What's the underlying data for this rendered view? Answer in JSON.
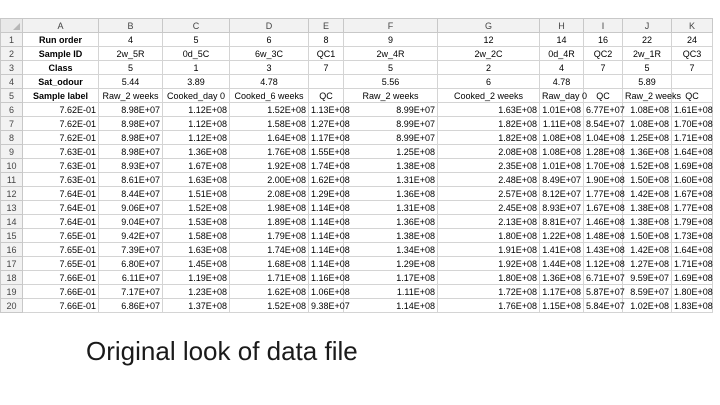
{
  "caption": "Original look of data file",
  "columns": [
    "A",
    "B",
    "C",
    "D",
    "E",
    "F",
    "G",
    "H",
    "I",
    "J",
    "K"
  ],
  "rows": [
    {
      "n": "1",
      "cells": [
        "Run order",
        "4",
        "5",
        "6",
        "8",
        "9",
        "12",
        "14",
        "16",
        "22",
        "24"
      ]
    },
    {
      "n": "2",
      "cells": [
        "Sample ID",
        "2w_5R",
        "0d_5C",
        "6w_3C",
        "QC1",
        "2w_4R",
        "2w_2C",
        "0d_4R",
        "QC2",
        "2w_1R",
        "QC3"
      ]
    },
    {
      "n": "3",
      "cells": [
        "Class",
        "5",
        "1",
        "3",
        "7",
        "5",
        "2",
        "4",
        "7",
        "5",
        "7"
      ]
    },
    {
      "n": "4",
      "cells": [
        "Sat_odour",
        "5.44",
        "3.89",
        "4.78",
        "",
        "5.56",
        "6",
        "4.78",
        "",
        "5.89",
        ""
      ]
    },
    {
      "n": "5",
      "cells": [
        "Sample label",
        "Raw_2 weeks",
        "Cooked_day 0",
        "Cooked_6 weeks",
        "QC",
        "Raw_2 weeks",
        "Cooked_2 weeks",
        "Raw_day 0",
        "QC",
        "Raw_2 weeks",
        "QC"
      ]
    },
    {
      "n": "6",
      "cells": [
        "7.62E-01",
        "8.98E+07",
        "1.12E+08",
        "1.52E+08",
        "1.13E+08",
        "8.99E+07",
        "1.63E+08",
        "1.01E+08",
        "6.77E+07",
        "1.08E+08",
        "1.61E+08"
      ]
    },
    {
      "n": "7",
      "cells": [
        "7.62E-01",
        "8.98E+07",
        "1.12E+08",
        "1.58E+08",
        "1.27E+08",
        "8.99E+07",
        "1.82E+08",
        "1.11E+08",
        "8.54E+07",
        "1.08E+08",
        "1.70E+08"
      ]
    },
    {
      "n": "8",
      "cells": [
        "7.62E-01",
        "8.98E+07",
        "1.12E+08",
        "1.64E+08",
        "1.17E+08",
        "8.99E+07",
        "1.82E+08",
        "1.08E+08",
        "1.04E+08",
        "1.25E+08",
        "1.71E+08"
      ]
    },
    {
      "n": "9",
      "cells": [
        "7.63E-01",
        "8.98E+07",
        "1.36E+08",
        "1.76E+08",
        "1.55E+08",
        "1.25E+08",
        "2.08E+08",
        "1.08E+08",
        "1.28E+08",
        "1.36E+08",
        "1.64E+08"
      ]
    },
    {
      "n": "10",
      "cells": [
        "7.63E-01",
        "8.93E+07",
        "1.67E+08",
        "1.92E+08",
        "1.74E+08",
        "1.38E+08",
        "2.35E+08",
        "1.01E+08",
        "1.70E+08",
        "1.52E+08",
        "1.69E+08"
      ]
    },
    {
      "n": "11",
      "cells": [
        "7.63E-01",
        "8.61E+07",
        "1.63E+08",
        "2.00E+08",
        "1.62E+08",
        "1.31E+08",
        "2.48E+08",
        "8.49E+07",
        "1.90E+08",
        "1.50E+08",
        "1.60E+08"
      ]
    },
    {
      "n": "12",
      "cells": [
        "7.64E-01",
        "8.44E+07",
        "1.51E+08",
        "2.08E+08",
        "1.29E+08",
        "1.36E+08",
        "2.57E+08",
        "8.12E+07",
        "1.77E+08",
        "1.42E+08",
        "1.67E+08"
      ]
    },
    {
      "n": "13",
      "cells": [
        "7.64E-01",
        "9.06E+07",
        "1.52E+08",
        "1.98E+08",
        "1.14E+08",
        "1.31E+08",
        "2.45E+08",
        "8.93E+07",
        "1.67E+08",
        "1.38E+08",
        "1.77E+08"
      ]
    },
    {
      "n": "14",
      "cells": [
        "7.64E-01",
        "9.04E+07",
        "1.53E+08",
        "1.89E+08",
        "1.14E+08",
        "1.36E+08",
        "2.13E+08",
        "8.81E+07",
        "1.46E+08",
        "1.38E+08",
        "1.79E+08"
      ]
    },
    {
      "n": "15",
      "cells": [
        "7.65E-01",
        "9.42E+07",
        "1.58E+08",
        "1.79E+08",
        "1.14E+08",
        "1.38E+08",
        "1.80E+08",
        "1.22E+08",
        "1.48E+08",
        "1.50E+08",
        "1.73E+08"
      ]
    },
    {
      "n": "16",
      "cells": [
        "7.65E-01",
        "7.39E+07",
        "1.63E+08",
        "1.74E+08",
        "1.14E+08",
        "1.34E+08",
        "1.91E+08",
        "1.41E+08",
        "1.43E+08",
        "1.42E+08",
        "1.64E+08"
      ]
    },
    {
      "n": "17",
      "cells": [
        "7.65E-01",
        "6.80E+07",
        "1.45E+08",
        "1.68E+08",
        "1.14E+08",
        "1.29E+08",
        "1.92E+08",
        "1.44E+08",
        "1.12E+08",
        "1.27E+08",
        "1.71E+08"
      ]
    },
    {
      "n": "18",
      "cells": [
        "7.66E-01",
        "6.11E+07",
        "1.19E+08",
        "1.71E+08",
        "1.16E+08",
        "1.17E+08",
        "1.80E+08",
        "1.36E+08",
        "6.71E+07",
        "9.59E+07",
        "1.69E+08"
      ]
    },
    {
      "n": "19",
      "cells": [
        "7.66E-01",
        "7.17E+07",
        "1.23E+08",
        "1.62E+08",
        "1.06E+08",
        "1.11E+08",
        "1.72E+08",
        "1.17E+08",
        "5.87E+07",
        "8.59E+07",
        "1.80E+08"
      ]
    },
    {
      "n": "20",
      "cells": [
        "7.66E-01",
        "6.86E+07",
        "1.37E+08",
        "1.52E+08",
        "9.38E+07",
        "1.14E+08",
        "1.76E+08",
        "1.15E+08",
        "5.84E+07",
        "1.02E+08",
        "1.83E+08"
      ]
    }
  ]
}
